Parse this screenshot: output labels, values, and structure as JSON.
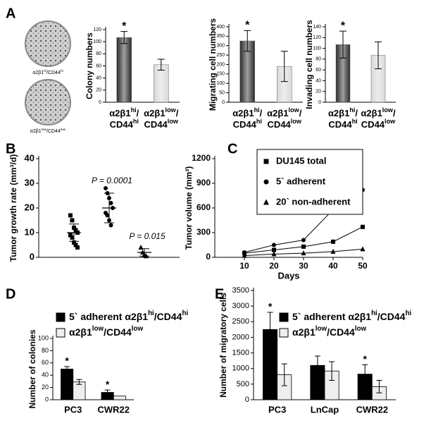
{
  "images": [
    {
      "caption": [
        {
          "text": "α2β1"
        },
        {
          "text": "hi",
          "sup": true
        },
        {
          "text": "/CD44"
        },
        {
          "text": "hi",
          "sup": true
        }
      ]
    },
    {
      "caption": [
        {
          "text": "α2β1"
        },
        {
          "text": "low",
          "sup": true
        },
        {
          "text": "/CD44"
        },
        {
          "text": "low",
          "sup": true
        }
      ]
    }
  ],
  "chart_data": [
    {
      "type": "bar",
      "panel": "A",
      "ylabel": "Colony numbers",
      "categories": [
        [
          [
            {
              "text": "α2β1"
            },
            {
              "text": "hi",
              "sup": true
            },
            {
              "text": "/"
            }
          ],
          [
            {
              "text": "CD44"
            },
            {
              "text": "hi",
              "sup": true
            }
          ]
        ],
        [
          [
            {
              "text": "α2β1"
            },
            {
              "text": "low",
              "sup": true
            },
            {
              "text": "/"
            }
          ],
          [
            {
              "text": "CD44"
            },
            {
              "text": "low",
              "sup": true
            }
          ]
        ]
      ],
      "values": [
        107,
        62
      ],
      "errors": [
        10,
        9
      ],
      "colors": [
        "#2a2a2a",
        "#d8d8d8"
      ],
      "ylim": [
        0,
        120
      ],
      "yticks": [
        0,
        20,
        40,
        60,
        80,
        100,
        120
      ],
      "annotations": [
        {
          "text": "*",
          "index": 0
        }
      ]
    },
    {
      "type": "bar",
      "ylabel": "Migrating cell numbers",
      "categories": [
        [
          [
            {
              "text": "α2β1"
            },
            {
              "text": "hi",
              "sup": true
            },
            {
              "text": "/"
            }
          ],
          [
            {
              "text": "CD44"
            },
            {
              "text": "hi",
              "sup": true
            }
          ]
        ],
        [
          [
            {
              "text": "α2β1"
            },
            {
              "text": "low",
              "sup": true
            },
            {
              "text": "/"
            }
          ],
          [
            {
              "text": "CD44"
            },
            {
              "text": "low",
              "sup": true
            }
          ]
        ]
      ],
      "values": [
        325,
        190
      ],
      "errors": [
        55,
        80
      ],
      "colors": [
        "#2a2a2a",
        "#d8d8d8"
      ],
      "ylim": [
        0,
        400
      ],
      "yticks": [
        0,
        50,
        100,
        150,
        200,
        250,
        300,
        350,
        400
      ],
      "annotations": [
        {
          "text": "*",
          "index": 0
        }
      ]
    },
    {
      "type": "bar",
      "ylabel": "Invading cell numbers",
      "categories": [
        [
          [
            {
              "text": "α2β1"
            },
            {
              "text": "hi",
              "sup": true
            },
            {
              "text": "/"
            }
          ],
          [
            {
              "text": "CD44"
            },
            {
              "text": "hi",
              "sup": true
            }
          ]
        ],
        [
          [
            {
              "text": "α2β1"
            },
            {
              "text": "low",
              "sup": true
            },
            {
              "text": "/"
            }
          ],
          [
            {
              "text": "CD44"
            },
            {
              "text": "low",
              "sup": true
            }
          ]
        ]
      ],
      "values": [
        107,
        87
      ],
      "errors": [
        25,
        25
      ],
      "colors": [
        "#2a2a2a",
        "#d8d8d8"
      ],
      "ylim": [
        0,
        140
      ],
      "yticks": [
        0,
        20,
        40,
        60,
        80,
        100,
        120,
        140
      ],
      "annotations": [
        {
          "text": "*",
          "index": 0
        }
      ]
    },
    {
      "type": "dot",
      "panel": "B",
      "ylabel": "Tumor growth rate (mm³/d)",
      "ylim": [
        0,
        40
      ],
      "yticks": [
        0,
        10,
        20,
        30,
        40
      ],
      "series": [
        {
          "marker": "square",
          "color": "#000000",
          "values": [
            17,
            15,
            12,
            11,
            10,
            9,
            8,
            6,
            5,
            4
          ],
          "mean": 10,
          "sd": 3.5
        },
        {
          "marker": "circle",
          "color": "#000000",
          "values": [
            28,
            26,
            24,
            22,
            20,
            18,
            17,
            15,
            13
          ],
          "mean": 20,
          "sd": 6
        },
        {
          "marker": "triangle",
          "color": "#000000",
          "values": [
            4,
            2,
            1,
            0.5
          ],
          "mean": 2,
          "sd": 1.5
        }
      ],
      "annotations": [
        {
          "text": "P = 0.0001",
          "series": 1
        },
        {
          "text": "P = 0.015",
          "series": 2
        }
      ]
    },
    {
      "type": "line",
      "panel": "C",
      "ylabel": "Tumor volume (mm³)",
      "xlabel": "Days",
      "x": [
        10,
        20,
        30,
        40,
        50
      ],
      "xlim": [
        0,
        50
      ],
      "xticks": [
        10,
        20,
        30,
        40,
        50
      ],
      "ylim": [
        0,
        1200
      ],
      "yticks": [
        0,
        300,
        600,
        900,
        1200
      ],
      "legend": "upper-right",
      "series": [
        {
          "name": "DU145 total",
          "marker": "square",
          "color": "#000000",
          "values": [
            50,
            90,
            130,
            190,
            370
          ]
        },
        {
          "name": "5` adherent",
          "marker": "circle",
          "color": "#000000",
          "values": [
            60,
            150,
            210,
            580,
            820
          ]
        },
        {
          "name": "20` non-adherent",
          "marker": "triangle",
          "color": "#000000",
          "values": [
            20,
            40,
            50,
            70,
            100
          ]
        }
      ]
    },
    {
      "type": "grouped-bar",
      "panel": "D",
      "ylabel": "Number of colonies",
      "categories": [
        "PC3",
        "CWR22"
      ],
      "ylim": [
        0,
        100
      ],
      "yticks": [
        0,
        20,
        40,
        60,
        80,
        100
      ],
      "legend": "top",
      "series": [
        {
          "name": [
            {
              "text": "5` adherent α2β1"
            },
            {
              "text": "hi",
              "sup": true
            },
            {
              "text": "/CD44"
            },
            {
              "text": "hi",
              "sup": true
            }
          ],
          "color": "#000000",
          "values": [
            50,
            12
          ],
          "errors": [
            4,
            4
          ]
        },
        {
          "name": [
            {
              "text": "α2β1"
            },
            {
              "text": "low",
              "sup": true
            },
            {
              "text": "/CD44"
            },
            {
              "text": "low",
              "sup": true
            }
          ],
          "color": "#eeeeee",
          "values": [
            29,
            6
          ],
          "errors": [
            4,
            null
          ]
        }
      ],
      "annotations": [
        {
          "text": "*",
          "series": 0,
          "index": 0
        },
        {
          "text": "*",
          "series": 0,
          "index": 1
        }
      ]
    },
    {
      "type": "grouped-bar",
      "panel": "E",
      "ylabel": "Number of migratory cells",
      "categories": [
        "PC3",
        "LnCap",
        "CWR22"
      ],
      "ylim": [
        0,
        3500
      ],
      "yticks": [
        0,
        500,
        1000,
        1500,
        2000,
        2500,
        3000,
        3500
      ],
      "legend": "top",
      "series": [
        {
          "name": [
            {
              "text": "5` adherent α2β1"
            },
            {
              "text": "hi",
              "sup": true
            },
            {
              "text": "/CD44"
            },
            {
              "text": "hi",
              "sup": true
            }
          ],
          "color": "#000000",
          "values": [
            2250,
            1100,
            820
          ],
          "errors": [
            550,
            300,
            300
          ]
        },
        {
          "name": [
            {
              "text": "α2β1"
            },
            {
              "text": "low",
              "sup": true
            },
            {
              "text": "/CD44"
            },
            {
              "text": "low",
              "sup": true
            }
          ],
          "color": "#eeeeee",
          "values": [
            800,
            920,
            420
          ],
          "errors": [
            350,
            300,
            200
          ]
        }
      ],
      "annotations": [
        {
          "text": "*",
          "series": 0,
          "index": 0
        },
        {
          "text": "*",
          "series": 0,
          "index": 2
        }
      ]
    }
  ]
}
